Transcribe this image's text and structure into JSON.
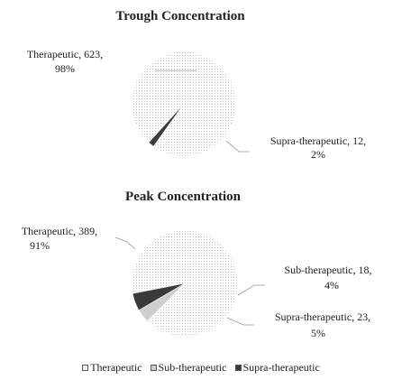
{
  "chart_data": [
    {
      "type": "pie",
      "title": "Trough Concentration",
      "slices": [
        {
          "name": "Therapeutic",
          "value": 623,
          "percent": "98%",
          "label_line1": "Therapeutic, 623,",
          "label_line2": "98%"
        },
        {
          "name": "Sub-therapeutic",
          "value": 0,
          "percent": "",
          "label_line1": "",
          "label_line2": ""
        },
        {
          "name": "Supra-therapeutic",
          "value": 12,
          "percent": "2%",
          "label_line1": "Supra-therapeutic, 12,",
          "label_line2": "2%"
        }
      ]
    },
    {
      "type": "pie",
      "title": "Peak Concentration",
      "slices": [
        {
          "name": "Therapeutic",
          "value": 389,
          "percent": "91%",
          "label_line1": "Therapeutic, 389,",
          "label_line2": "91%"
        },
        {
          "name": "Sub-therapeutic",
          "value": 18,
          "percent": "4%",
          "label_line1": "Sub-therapeutic, 18,",
          "label_line2": "4%"
        },
        {
          "name": "Supra-therapeutic",
          "value": 23,
          "percent": "5%",
          "label_line1": "Supra-therapeutic, 23,",
          "label_line2": "5%"
        }
      ]
    }
  ],
  "legend": {
    "placement": "bottom",
    "items": [
      {
        "name": "Therapeutic",
        "color": "#f4f4f4"
      },
      {
        "name": "Sub-therapeutic",
        "color": "#cfcfcf"
      },
      {
        "name": "Supra-therapeutic",
        "color": "#3a3a3a"
      }
    ]
  },
  "colors": {
    "therapeutic_dots": "#bdbdbd",
    "sub_therapeutic": "#cfcfcf",
    "supra_therapeutic": "#3a3a3a"
  }
}
